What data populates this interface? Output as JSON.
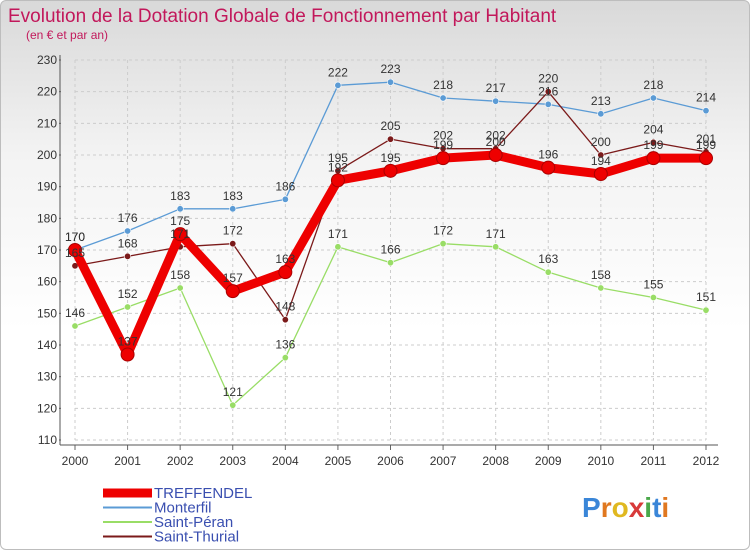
{
  "chart_data": {
    "type": "line",
    "title": "Evolution de la Dotation Globale de Fonctionnement par Habitant",
    "subtitle": "(en € et par an)",
    "x": [
      "2000",
      "2001",
      "2002",
      "2003",
      "2004",
      "2005",
      "2006",
      "2007",
      "2008",
      "2009",
      "2010",
      "2011",
      "2012"
    ],
    "ylim": [
      110,
      230
    ],
    "yticks": [
      110,
      120,
      130,
      140,
      150,
      160,
      170,
      180,
      190,
      200,
      210,
      220,
      230
    ],
    "grid": true,
    "legend_position": "bottom-left",
    "series": [
      {
        "name": "TREFFENDEL",
        "color": "#ee0000",
        "values": [
          170,
          137,
          175,
          157,
          163,
          192,
          195,
          199,
          200,
          196,
          194,
          199,
          199
        ]
      },
      {
        "name": "Monterfil",
        "color": "#5b9bd5",
        "values": [
          170,
          176,
          183,
          183,
          186,
          222,
          223,
          218,
          217,
          216,
          213,
          218,
          214
        ]
      },
      {
        "name": "Saint-Péran",
        "color": "#99dd66",
        "values": [
          146,
          152,
          158,
          121,
          136,
          171,
          166,
          172,
          171,
          163,
          158,
          155,
          151
        ]
      },
      {
        "name": "Saint-Thurial",
        "color": "#7b1a1a",
        "values": [
          165,
          168,
          171,
          172,
          148,
          195,
          205,
          202,
          202,
          220,
          200,
          204,
          201
        ]
      }
    ]
  },
  "logo": {
    "letters": [
      "P",
      "r",
      "o",
      "x",
      "i",
      "t",
      "i"
    ],
    "colors": [
      "#3a86d8",
      "#e07820",
      "#e0b820",
      "#d83a3a",
      "#4aa84a",
      "#3a86d8",
      "#e07820"
    ]
  }
}
